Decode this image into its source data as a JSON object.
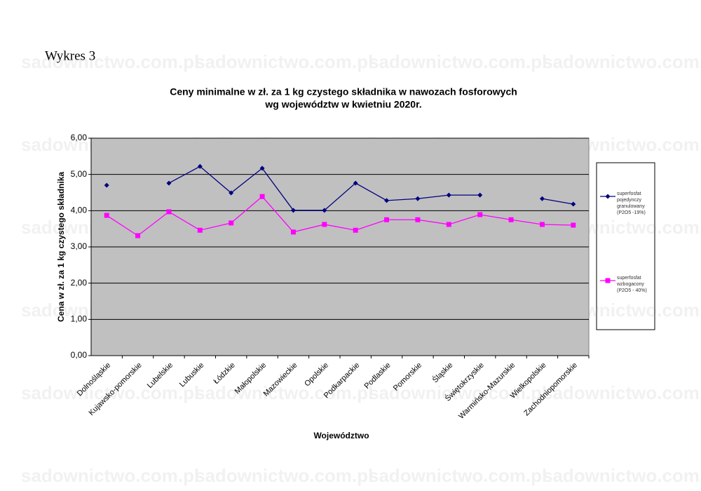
{
  "header": "Wykres 3",
  "watermark": "sadownictwo.com.pl",
  "chart_data": {
    "type": "line",
    "title": "Ceny minimalne  w zł. za 1 kg czystego składnika w nawozach fosforowych",
    "subtitle": "wg województw w kwietniu 2020r.",
    "x_label": "Województwo",
    "y_label": "Cena w zł. za 1 kg czystego składnika",
    "categories": [
      "Dolnośląskie",
      "Kujawsko-pomorskie",
      "Lubelskie",
      "Lubuskie",
      "Łódzkie",
      "Małopolskie",
      "Mazowieckie",
      "Opolskie",
      "Podkarpackie",
      "Podlaskie",
      "Pomorskie",
      "Śląskie",
      "Świętokrzyskie",
      "Warmińsko-Mazurskie",
      "Wielkopolskie",
      "Zachodniopomorskie"
    ],
    "series": [
      {
        "name": "superfosfat pojedynczy granulowany (P2O5 -19%)",
        "color": "#000080",
        "marker": "diamond",
        "values": [
          4.7,
          null,
          4.76,
          5.22,
          4.49,
          5.17,
          4.01,
          4.01,
          4.76,
          4.28,
          4.33,
          4.43,
          4.43,
          null,
          4.33,
          4.18
        ]
      },
      {
        "name": "superfosfat wzbogacony (P2O5 - 40%)",
        "color": "#ff00ff",
        "marker": "square",
        "values": [
          3.87,
          3.31,
          3.97,
          3.46,
          3.66,
          4.39,
          3.41,
          3.62,
          3.46,
          3.75,
          3.75,
          3.62,
          3.89,
          3.75,
          3.62,
          3.6
        ]
      }
    ],
    "ylim": [
      0,
      6
    ],
    "yticks": [
      {
        "value": 0,
        "label": "0,00"
      },
      {
        "value": 1,
        "label": "1,00"
      },
      {
        "value": 2,
        "label": "2,00"
      },
      {
        "value": 3,
        "label": "3,00"
      },
      {
        "value": 4,
        "label": "4,00"
      },
      {
        "value": 5,
        "label": "5,00"
      },
      {
        "value": 6,
        "label": "6,00"
      }
    ],
    "grid": true,
    "legend": "right",
    "plot_background": "#c0c0c0"
  }
}
